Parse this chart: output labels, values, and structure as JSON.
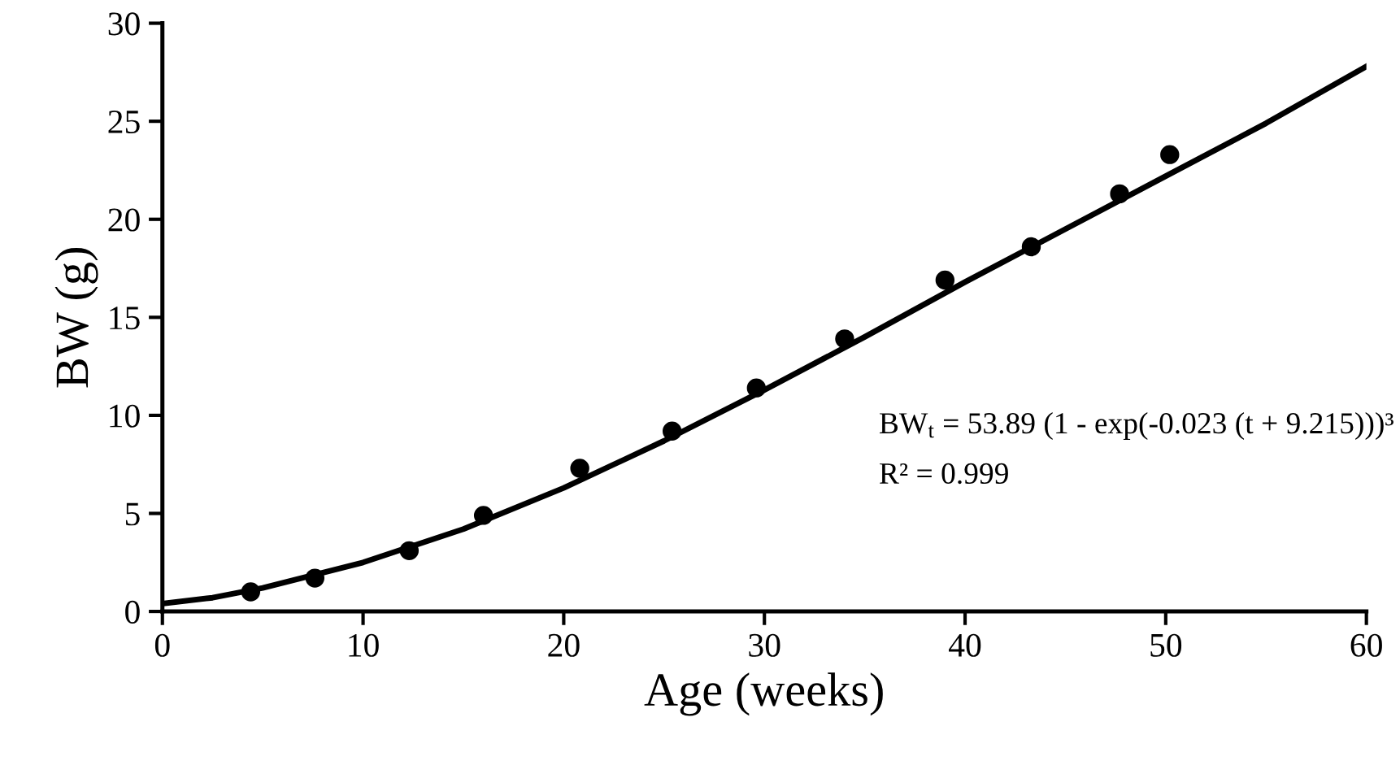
{
  "chart_data": {
    "type": "scatter",
    "xlabel": "Age (weeks)",
    "ylabel": "BW (g)",
    "xlim": [
      0,
      60
    ],
    "ylim": [
      0,
      30
    ],
    "xticks": [
      0,
      10,
      20,
      30,
      40,
      50,
      60
    ],
    "yticks": [
      0,
      5,
      10,
      15,
      20,
      25,
      30
    ],
    "grid": false,
    "legend": false,
    "annotations": [
      "BW$_{t}$ = 53.89 (1 - exp(-0.023 (t + 9.215)))³",
      "R² = 0.999"
    ],
    "series": [
      {
        "color": "#000000",
        "marker": "circle",
        "x": [
          4.4,
          7.6,
          12.3,
          16,
          20.8,
          25.4,
          29.6,
          34,
          39,
          43.3,
          47.7,
          50.2
        ],
        "values": [
          1.0,
          1.7,
          3.1,
          4.9,
          7.3,
          9.2,
          11.4,
          13.9,
          16.9,
          18.6,
          21.3,
          23.3
        ]
      },
      {
        "type": "line",
        "color": "#000000",
        "marker": "none",
        "line_style": "solid",
        "x": [
          0,
          2.5,
          5,
          10,
          15,
          20,
          25,
          30,
          35,
          40,
          45,
          50,
          55,
          60
        ],
        "values": [
          0.4,
          0.7,
          1.2,
          2.5,
          4.2,
          6.3,
          8.7,
          11.3,
          14.0,
          16.8,
          19.5,
          22.2,
          24.9,
          27.8
        ]
      }
    ]
  }
}
